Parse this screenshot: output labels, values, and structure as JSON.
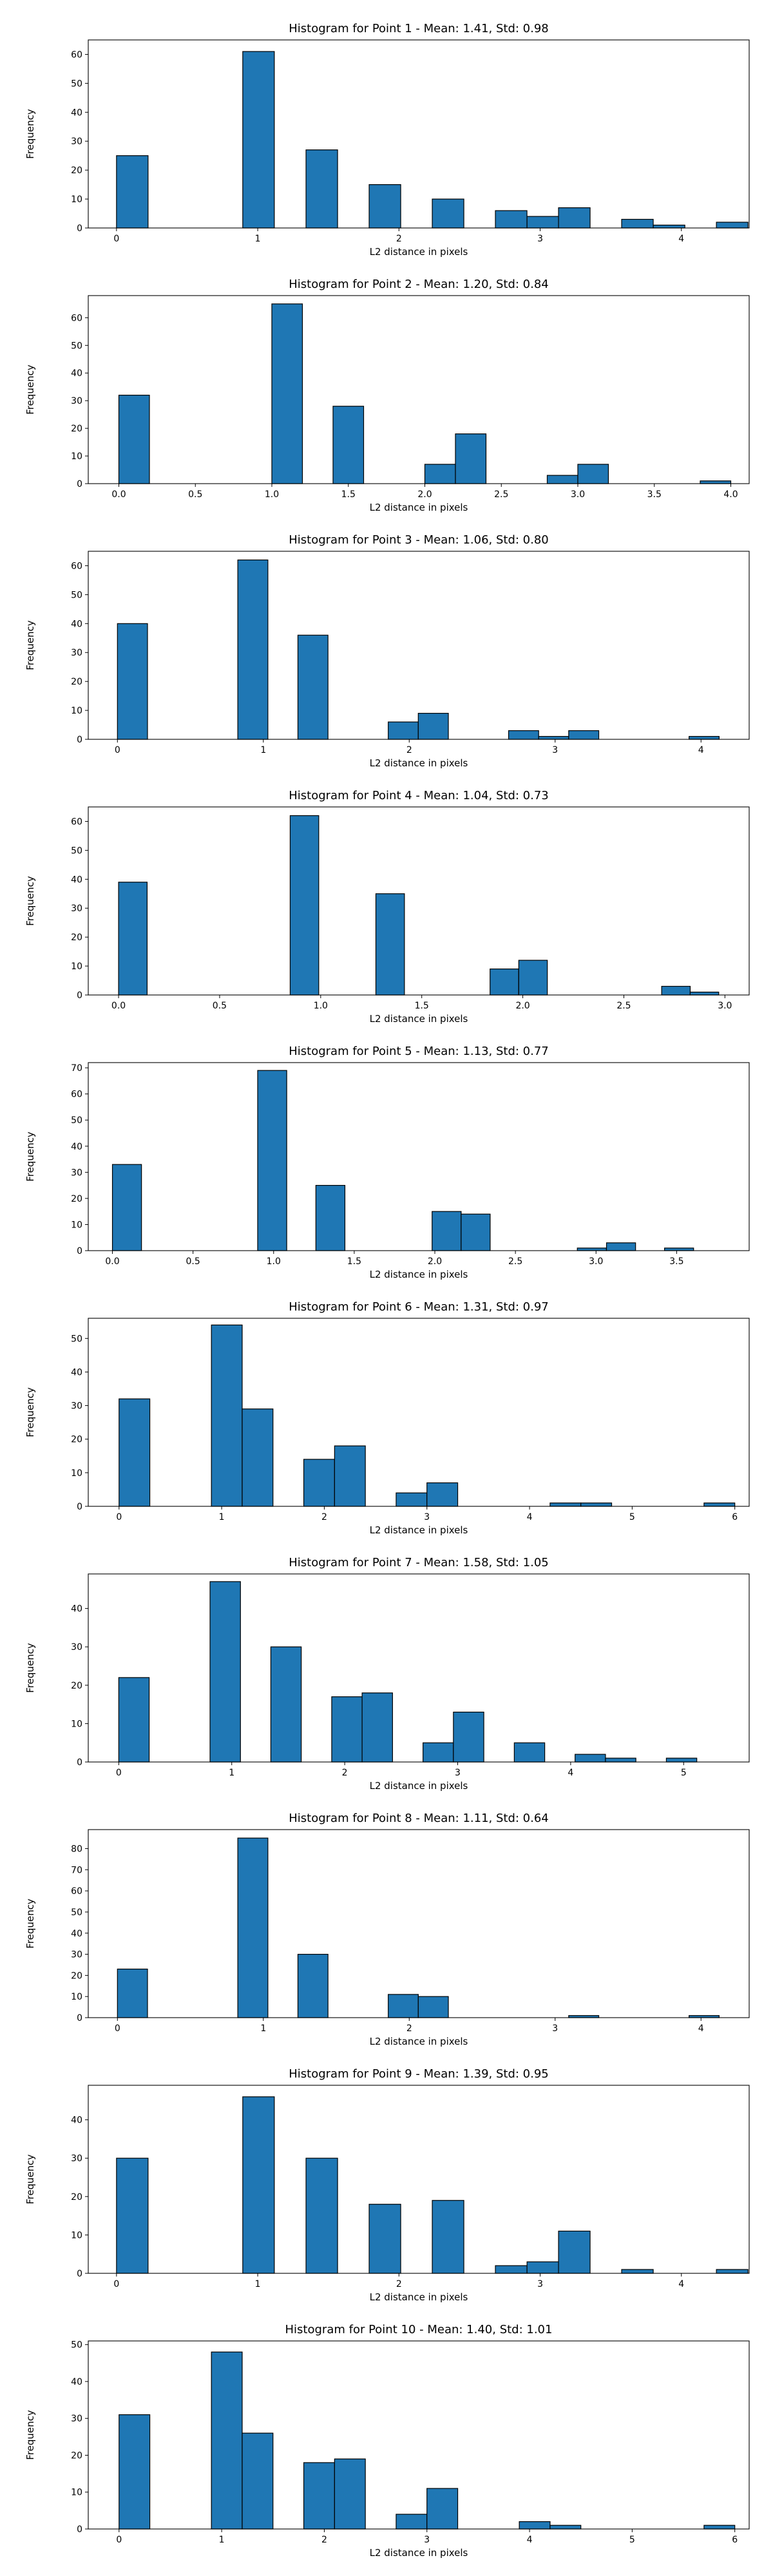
{
  "colors": {
    "bar_fill": "#1f77b4",
    "bar_edge": "#000000",
    "axes": "#000000",
    "background": "#ffffff"
  },
  "chart_data": [
    {
      "type": "bar",
      "title": "Histogram for Point 1 - Mean: 1.41, Std: 0.98",
      "xlabel": "L2 distance in pixels",
      "ylabel": "Frequency",
      "grid": false,
      "xlim": [
        -0.2,
        4.48
      ],
      "ylim": [
        0,
        65
      ],
      "xticks": [
        0,
        1,
        2,
        3,
        4
      ],
      "xtick_labels": [
        "0",
        "1",
        "2",
        "3",
        "4"
      ],
      "yticks": [
        0,
        10,
        20,
        30,
        40,
        50,
        60
      ],
      "ytick_labels": [
        "0",
        "10",
        "20",
        "30",
        "40",
        "50",
        "60"
      ],
      "bin_width": 0.2236,
      "bins": [
        {
          "x": 0.0,
          "count": 25
        },
        {
          "x": 0.894,
          "count": 61
        },
        {
          "x": 1.342,
          "count": 27
        },
        {
          "x": 1.789,
          "count": 15
        },
        {
          "x": 2.236,
          "count": 10
        },
        {
          "x": 2.683,
          "count": 6
        },
        {
          "x": 2.907,
          "count": 4
        },
        {
          "x": 3.13,
          "count": 7
        },
        {
          "x": 3.577,
          "count": 3
        },
        {
          "x": 3.801,
          "count": 1
        },
        {
          "x": 4.248,
          "count": 2
        }
      ]
    },
    {
      "type": "bar",
      "title": "Histogram for Point 2 - Mean: 1.20, Std: 0.84",
      "xlabel": "L2 distance in pixels",
      "ylabel": "Frequency",
      "grid": false,
      "xlim": [
        -0.2,
        4.12
      ],
      "ylim": [
        0,
        68
      ],
      "xticks": [
        0.0,
        0.5,
        1.0,
        1.5,
        2.0,
        2.5,
        3.0,
        3.5,
        4.0
      ],
      "xtick_labels": [
        "0.0",
        "0.5",
        "1.0",
        "1.5",
        "2.0",
        "2.5",
        "3.0",
        "3.5",
        "4.0"
      ],
      "yticks": [
        0,
        10,
        20,
        30,
        40,
        50,
        60
      ],
      "ytick_labels": [
        "0",
        "10",
        "20",
        "30",
        "40",
        "50",
        "60"
      ],
      "bin_width": 0.2,
      "bins": [
        {
          "x": 0.0,
          "count": 32
        },
        {
          "x": 1.0,
          "count": 65
        },
        {
          "x": 1.4,
          "count": 28
        },
        {
          "x": 2.0,
          "count": 7
        },
        {
          "x": 2.2,
          "count": 18
        },
        {
          "x": 2.8,
          "count": 3
        },
        {
          "x": 3.0,
          "count": 7
        },
        {
          "x": 3.8,
          "count": 1
        }
      ]
    },
    {
      "type": "bar",
      "title": "Histogram for Point 3 - Mean: 1.06, Std: 0.80",
      "xlabel": "L2 distance in pixels",
      "ylabel": "Frequency",
      "grid": false,
      "xlim": [
        -0.2,
        4.33
      ],
      "ylim": [
        0,
        65
      ],
      "xticks": [
        0,
        1,
        2,
        3,
        4
      ],
      "xtick_labels": [
        "0",
        "1",
        "2",
        "3",
        "4"
      ],
      "yticks": [
        0,
        10,
        20,
        30,
        40,
        50,
        60
      ],
      "ytick_labels": [
        "0",
        "10",
        "20",
        "30",
        "40",
        "50",
        "60"
      ],
      "bin_width": 0.2062,
      "bins": [
        {
          "x": 0.0,
          "count": 40
        },
        {
          "x": 0.825,
          "count": 62
        },
        {
          "x": 1.237,
          "count": 36
        },
        {
          "x": 1.856,
          "count": 6
        },
        {
          "x": 2.062,
          "count": 9
        },
        {
          "x": 2.681,
          "count": 3
        },
        {
          "x": 2.887,
          "count": 1
        },
        {
          "x": 3.093,
          "count": 3
        },
        {
          "x": 3.918,
          "count": 1
        }
      ]
    },
    {
      "type": "bar",
      "title": "Histogram for Point 4 - Mean: 1.04, Std: 0.73",
      "xlabel": "L2 distance in pixels",
      "ylabel": "Frequency",
      "grid": false,
      "xlim": [
        -0.15,
        3.12
      ],
      "ylim": [
        0,
        65
      ],
      "xticks": [
        0.0,
        0.5,
        1.0,
        1.5,
        2.0,
        2.5,
        3.0
      ],
      "xtick_labels": [
        "0.0",
        "0.5",
        "1.0",
        "1.5",
        "2.0",
        "2.5",
        "3.0"
      ],
      "yticks": [
        0,
        10,
        20,
        30,
        40,
        50,
        60
      ],
      "ytick_labels": [
        "0",
        "10",
        "20",
        "30",
        "40",
        "50",
        "60"
      ],
      "bin_width": 0.1414,
      "bins": [
        {
          "x": 0.0,
          "count": 39
        },
        {
          "x": 0.849,
          "count": 62
        },
        {
          "x": 1.273,
          "count": 35
        },
        {
          "x": 1.838,
          "count": 9
        },
        {
          "x": 1.98,
          "count": 12
        },
        {
          "x": 2.687,
          "count": 3
        },
        {
          "x": 2.828,
          "count": 1
        }
      ]
    },
    {
      "type": "bar",
      "title": "Histogram for Point 5 - Mean: 1.13, Std: 0.77",
      "xlabel": "L2 distance in pixels",
      "ylabel": "Frequency",
      "grid": false,
      "xlim": [
        -0.15,
        3.95
      ],
      "ylim": [
        0,
        72
      ],
      "xticks": [
        0.0,
        0.5,
        1.0,
        1.5,
        2.0,
        2.5,
        3.0,
        3.5
      ],
      "xtick_labels": [
        "0.0",
        "0.5",
        "1.0",
        "1.5",
        "2.0",
        "2.5",
        "3.0",
        "3.5"
      ],
      "yticks": [
        0,
        10,
        20,
        30,
        40,
        50,
        60,
        70
      ],
      "ytick_labels": [
        "0",
        "10",
        "20",
        "30",
        "40",
        "50",
        "60",
        "70"
      ],
      "bin_width": 0.1803,
      "bins": [
        {
          "x": 0.0,
          "count": 33
        },
        {
          "x": 0.901,
          "count": 69
        },
        {
          "x": 1.262,
          "count": 25
        },
        {
          "x": 1.983,
          "count": 15
        },
        {
          "x": 2.163,
          "count": 14
        },
        {
          "x": 2.884,
          "count": 1
        },
        {
          "x": 3.065,
          "count": 3
        },
        {
          "x": 3.425,
          "count": 1
        }
      ]
    },
    {
      "type": "bar",
      "title": "Histogram for Point 6 - Mean: 1.31, Std: 0.97",
      "xlabel": "L2 distance in pixels",
      "ylabel": "Frequency",
      "grid": false,
      "xlim": [
        -0.3,
        6.14
      ],
      "ylim": [
        0,
        56
      ],
      "xticks": [
        0,
        1,
        2,
        3,
        4,
        5,
        6
      ],
      "xtick_labels": [
        "0",
        "1",
        "2",
        "3",
        "4",
        "5",
        "6"
      ],
      "yticks": [
        0,
        10,
        20,
        30,
        40,
        50
      ],
      "ytick_labels": [
        "0",
        "10",
        "20",
        "30",
        "40",
        "50"
      ],
      "bin_width": 0.3,
      "bins": [
        {
          "x": 0.0,
          "count": 32
        },
        {
          "x": 0.9,
          "count": 54
        },
        {
          "x": 1.2,
          "count": 29
        },
        {
          "x": 1.8,
          "count": 14
        },
        {
          "x": 2.1,
          "count": 18
        },
        {
          "x": 2.7,
          "count": 4
        },
        {
          "x": 3.0,
          "count": 7
        },
        {
          "x": 4.2,
          "count": 1
        },
        {
          "x": 4.5,
          "count": 1
        },
        {
          "x": 5.7,
          "count": 1
        }
      ]
    },
    {
      "type": "bar",
      "title": "Histogram for Point 7 - Mean: 1.58, Std: 1.05",
      "xlabel": "L2 distance in pixels",
      "ylabel": "Frequency",
      "grid": false,
      "xlim": [
        -0.27,
        5.58
      ],
      "ylim": [
        0,
        49
      ],
      "xticks": [
        0,
        1,
        2,
        3,
        4,
        5
      ],
      "xtick_labels": [
        "0",
        "1",
        "2",
        "3",
        "4",
        "5"
      ],
      "yticks": [
        0,
        10,
        20,
        30,
        40
      ],
      "ytick_labels": [
        "0",
        "10",
        "20",
        "30",
        "40"
      ],
      "bin_width": 0.2693,
      "bins": [
        {
          "x": 0.0,
          "count": 22
        },
        {
          "x": 0.808,
          "count": 47
        },
        {
          "x": 1.346,
          "count": 30
        },
        {
          "x": 1.885,
          "count": 17
        },
        {
          "x": 2.154,
          "count": 18
        },
        {
          "x": 2.693,
          "count": 5
        },
        {
          "x": 2.962,
          "count": 13
        },
        {
          "x": 3.501,
          "count": 5
        },
        {
          "x": 4.039,
          "count": 2
        },
        {
          "x": 4.308,
          "count": 1
        },
        {
          "x": 4.847,
          "count": 1
        }
      ]
    },
    {
      "type": "bar",
      "title": "Histogram for Point 8 - Mean: 1.11, Std: 0.64",
      "xlabel": "L2 distance in pixels",
      "ylabel": "Frequency",
      "grid": false,
      "xlim": [
        -0.2,
        4.33
      ],
      "ylim": [
        0,
        89
      ],
      "xticks": [
        0,
        1,
        2,
        3,
        4
      ],
      "xtick_labels": [
        "0",
        "1",
        "2",
        "3",
        "4"
      ],
      "yticks": [
        0,
        10,
        20,
        30,
        40,
        50,
        60,
        70,
        80
      ],
      "ytick_labels": [
        "0",
        "10",
        "20",
        "30",
        "40",
        "50",
        "60",
        "70",
        "80"
      ],
      "bin_width": 0.2062,
      "bins": [
        {
          "x": 0.0,
          "count": 23
        },
        {
          "x": 0.825,
          "count": 85
        },
        {
          "x": 1.237,
          "count": 30
        },
        {
          "x": 1.856,
          "count": 11
        },
        {
          "x": 2.062,
          "count": 10
        },
        {
          "x": 3.093,
          "count": 1
        },
        {
          "x": 3.918,
          "count": 1
        }
      ]
    },
    {
      "type": "bar",
      "title": "Histogram for Point 9 - Mean: 1.39, Std: 0.95",
      "xlabel": "L2 distance in pixels",
      "ylabel": "Frequency",
      "grid": false,
      "xlim": [
        -0.2,
        4.48
      ],
      "ylim": [
        0,
        49
      ],
      "xticks": [
        0,
        1,
        2,
        3,
        4
      ],
      "xtick_labels": [
        "0",
        "1",
        "2",
        "3",
        "4"
      ],
      "yticks": [
        0,
        10,
        20,
        30,
        40
      ],
      "ytick_labels": [
        "0",
        "10",
        "20",
        "30",
        "40"
      ],
      "bin_width": 0.2236,
      "bins": [
        {
          "x": 0.0,
          "count": 30
        },
        {
          "x": 0.894,
          "count": 46
        },
        {
          "x": 1.342,
          "count": 30
        },
        {
          "x": 1.789,
          "count": 18
        },
        {
          "x": 2.236,
          "count": 19
        },
        {
          "x": 2.683,
          "count": 2
        },
        {
          "x": 2.907,
          "count": 3
        },
        {
          "x": 3.13,
          "count": 11
        },
        {
          "x": 3.577,
          "count": 1
        },
        {
          "x": 4.248,
          "count": 1
        }
      ]
    },
    {
      "type": "bar",
      "title": "Histogram for Point 10 - Mean: 1.40, Std: 1.01",
      "xlabel": "L2 distance in pixels",
      "ylabel": "Frequency",
      "grid": false,
      "xlim": [
        -0.3,
        6.14
      ],
      "ylim": [
        0,
        51
      ],
      "xticks": [
        0,
        1,
        2,
        3,
        4,
        5,
        6
      ],
      "xtick_labels": [
        "0",
        "1",
        "2",
        "3",
        "4",
        "5",
        "6"
      ],
      "yticks": [
        0,
        10,
        20,
        30,
        40,
        50
      ],
      "ytick_labels": [
        "0",
        "10",
        "20",
        "30",
        "40",
        "50"
      ],
      "bin_width": 0.3,
      "bins": [
        {
          "x": 0.0,
          "count": 31
        },
        {
          "x": 0.9,
          "count": 48
        },
        {
          "x": 1.2,
          "count": 26
        },
        {
          "x": 1.8,
          "count": 18
        },
        {
          "x": 2.1,
          "count": 19
        },
        {
          "x": 2.7,
          "count": 4
        },
        {
          "x": 3.0,
          "count": 11
        },
        {
          "x": 3.9,
          "count": 2
        },
        {
          "x": 4.2,
          "count": 1
        },
        {
          "x": 5.7,
          "count": 1
        }
      ]
    }
  ]
}
